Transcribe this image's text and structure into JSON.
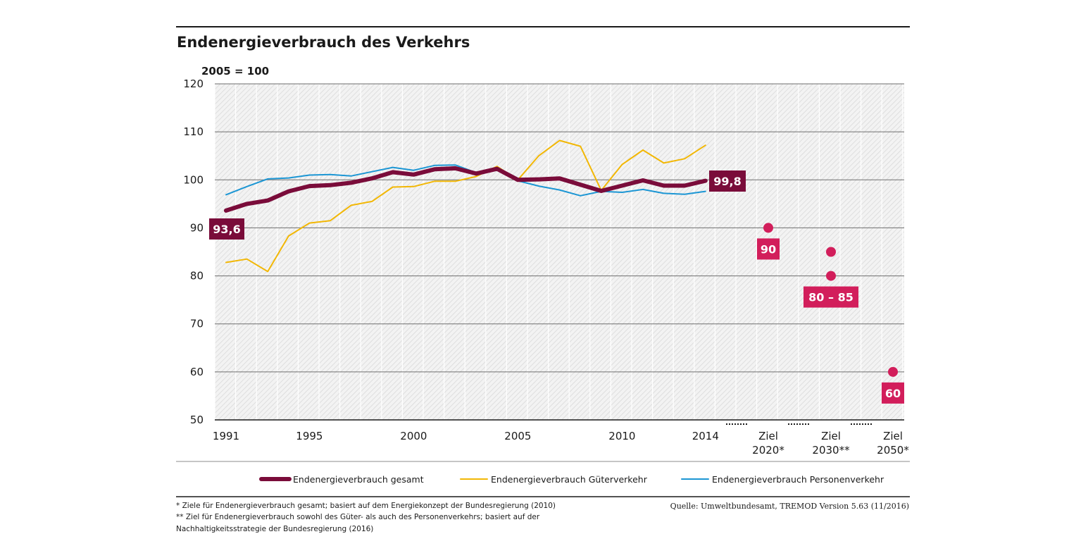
{
  "chart_data": {
    "type": "line",
    "title": "Endenergieverbrauch des Verkehrs",
    "ylabel": "2005 = 100",
    "ylim": [
      50,
      120
    ],
    "yticks": [
      50,
      60,
      70,
      80,
      90,
      100,
      110,
      120
    ],
    "x_tick_labels": [
      {
        "x": 1991,
        "lines": [
          "1991"
        ]
      },
      {
        "x": 1995,
        "lines": [
          "1995"
        ]
      },
      {
        "x": 2000,
        "lines": [
          "2000"
        ]
      },
      {
        "x": 2005,
        "lines": [
          "2005"
        ]
      },
      {
        "x": 2010,
        "lines": [
          "2010"
        ]
      },
      {
        "x": 2014,
        "lines": [
          "2014"
        ]
      },
      {
        "x": "Ziel 2020*",
        "lines": [
          "Ziel",
          "2020*"
        ]
      },
      {
        "x": "Ziel 2030**",
        "lines": [
          "Ziel",
          "2030**"
        ]
      },
      {
        "x": "Ziel 2050*",
        "lines": [
          "Ziel",
          "2050*"
        ]
      }
    ],
    "x": [
      1991,
      1992,
      1993,
      1994,
      1995,
      1996,
      1997,
      1998,
      1999,
      2000,
      2001,
      2002,
      2003,
      2004,
      2005,
      2006,
      2007,
      2008,
      2009,
      2010,
      2011,
      2012,
      2013,
      2014
    ],
    "series": [
      {
        "name": "Endenergieverbrauch gesamt",
        "color": "#7a0c3a",
        "values": [
          93.6,
          95.0,
          95.7,
          97.6,
          98.7,
          98.9,
          99.4,
          100.3,
          101.6,
          101.1,
          102.2,
          102.4,
          101.3,
          102.3,
          100.0,
          100.1,
          100.3,
          99.0,
          97.7,
          98.8,
          99.9,
          98.8,
          98.8,
          99.8
        ]
      },
      {
        "name": "Endenergieverbrauch Güterverkehr",
        "color": "#f2b705",
        "values": [
          82.8,
          83.5,
          80.9,
          88.3,
          91.0,
          91.5,
          94.7,
          95.5,
          98.5,
          98.6,
          99.7,
          99.7,
          100.7,
          102.8,
          100.0,
          105.0,
          108.2,
          107.0,
          97.8,
          103.2,
          106.2,
          103.5,
          104.4,
          107.2
        ]
      },
      {
        "name": "Endenergieverbrauch Personenverkehr",
        "color": "#1c96d4",
        "values": [
          96.9,
          98.6,
          100.2,
          100.4,
          101.0,
          101.1,
          100.8,
          101.7,
          102.6,
          102.0,
          103.0,
          103.1,
          101.5,
          102.2,
          99.8,
          98.7,
          97.9,
          96.7,
          97.6,
          97.4,
          98.0,
          97.2,
          97.0,
          97.6
        ]
      }
    ],
    "targets": [
      {
        "x": "Ziel 2020*",
        "values": [
          90
        ],
        "label": "90"
      },
      {
        "x": "Ziel 2030**",
        "values": [
          85,
          80
        ],
        "label": "80 – 85"
      },
      {
        "x": "Ziel 2050*",
        "values": [
          60
        ],
        "label": "60"
      }
    ],
    "target_color": "#d21e5b",
    "data_labels": [
      {
        "year": 1991,
        "value": "93,6"
      },
      {
        "year": 2014,
        "value": "99,8"
      }
    ],
    "legend_position": "bottom",
    "grid": true
  },
  "footnotes": [
    "* Ziele für Endenergieverbrauch gesamt; basiert auf dem Energiekonzept der Bundesregierung (2010)",
    "** Ziel für Endenergieverbrauch sowohl des Güter- als auch des Personenverkehrs; basiert auf der",
    "Nachhaltigkeitsstrategie der Bundesregierung (2016)"
  ],
  "source": "Quelle: Umweltbundesamt, TREMOD Version 5.63 (11/2016)"
}
